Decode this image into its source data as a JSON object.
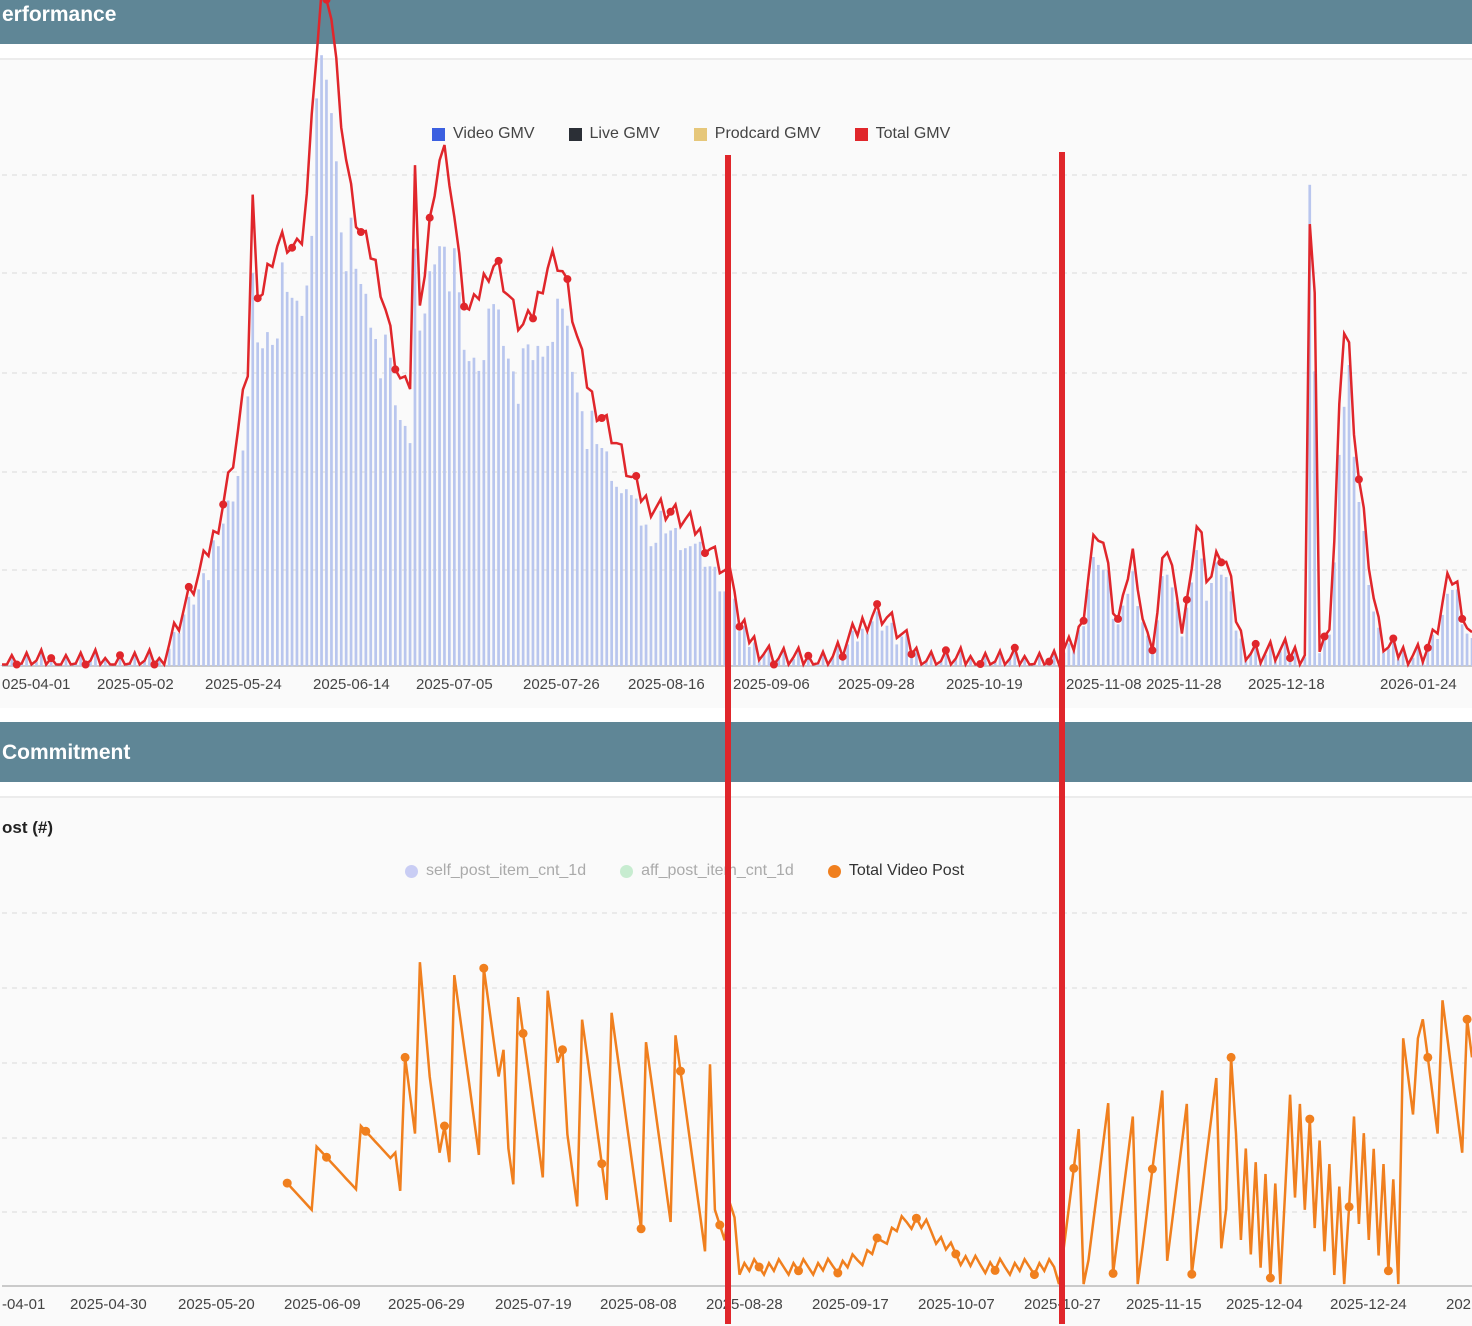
{
  "sections": {
    "performance": {
      "title": "erformance"
    },
    "commitment": {
      "title": "Commitment",
      "subtitle": "ost (#)"
    }
  },
  "colors": {
    "header_bg": "#5f8696",
    "video_gmv": "#3b5fe0",
    "live_gmv": "#2b2f36",
    "prodcard_gmv": "#e6c77a",
    "total_gmv": "#e0262b",
    "self_post": "#c9cdf4",
    "aff_post": "#c7ecd0",
    "total_video_post": "#f07f1e",
    "annotation_line": "#e0262b"
  },
  "chart_data": [
    {
      "type": "bar",
      "id": "gmv",
      "title": "",
      "x_tick_labels": [
        "025-04-01",
        "2025-05-02",
        "2025-05-24",
        "2025-06-14",
        "2025-07-05",
        "2025-07-26",
        "2025-08-16",
        "2025-09-06",
        "2025-09-28",
        "2025-10-19",
        "2025-11-08",
        "2025-11-28",
        "2025-12-18",
        "2026-01-24"
      ],
      "legend": [
        {
          "name": "Video GMV",
          "marker": "square",
          "color": "#3b5fe0"
        },
        {
          "name": "Live GMV",
          "marker": "square",
          "color": "#2b2f36"
        },
        {
          "name": "Prodcard GMV",
          "marker": "square",
          "color": "#e6c77a"
        },
        {
          "name": "Total GMV",
          "marker": "square",
          "color": "#e0262b"
        }
      ],
      "ylim": [
        0,
        100
      ],
      "grid": true,
      "legend_position": "top-center",
      "series": [
        {
          "name": "Video GMV",
          "chart_type": "bar",
          "values": []
        },
        {
          "name": "Total GMV",
          "chart_type": "line",
          "values": []
        }
      ]
    },
    {
      "type": "line",
      "id": "video_posts",
      "title": "ost (#)",
      "x_tick_labels": [
        "-04-01",
        "2025-04-30",
        "2025-05-20",
        "2025-06-09",
        "2025-06-29",
        "2025-07-19",
        "2025-08-08",
        "2025-08-28",
        "2025-09-17",
        "2025-10-07",
        "2025-10-27",
        "2025-11-15",
        "2025-12-04",
        "2025-12-24",
        "202"
      ],
      "legend": [
        {
          "name": "self_post_item_cnt_1d",
          "marker": "dot",
          "color": "#c9cdf4"
        },
        {
          "name": "aff_post_item_cnt_1d",
          "marker": "dot",
          "color": "#c7ecd0"
        },
        {
          "name": "Total Video Post",
          "marker": "dot",
          "color": "#f07f1e"
        }
      ],
      "ylim": [
        0,
        100
      ],
      "grid": true,
      "legend_position": "top-center",
      "series": [
        {
          "name": "Total Video Post",
          "values": []
        }
      ]
    }
  ]
}
